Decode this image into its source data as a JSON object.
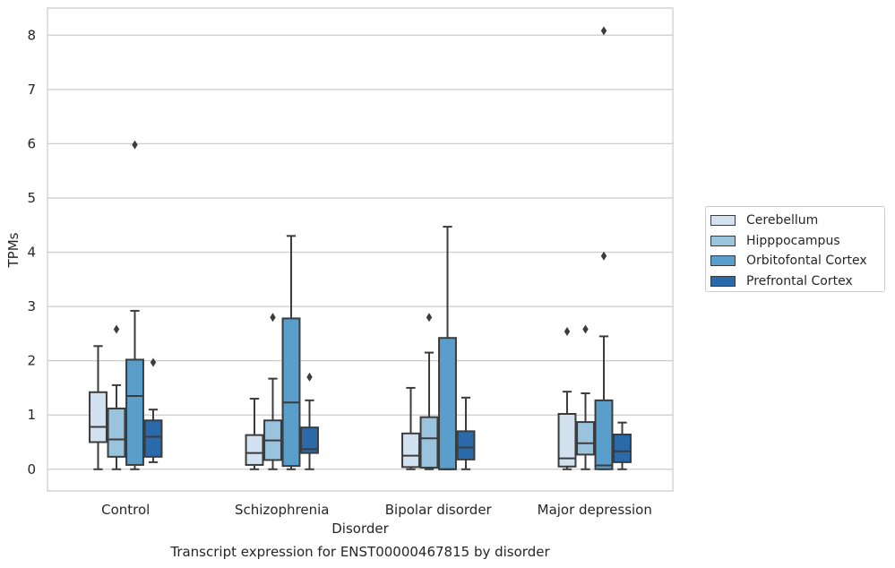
{
  "chart_data": {
    "type": "box",
    "title": "Transcript expression for ENST00000467815 by disorder",
    "xlabel": "Disorder",
    "ylabel": "TPMs",
    "ylim": [
      -0.4,
      8.5
    ],
    "yticks": [
      0,
      1,
      2,
      3,
      4,
      5,
      6,
      7,
      8
    ],
    "grid": "horizontal",
    "legend_position": "right",
    "categories": [
      "Control",
      "Schizophrenia",
      "Bipolar disorder",
      "Major depression"
    ],
    "series": [
      {
        "name": "Cerebellum",
        "color": "#d2e2f1",
        "boxes": [
          {
            "whislo": 0.0,
            "q1": 0.5,
            "med": 0.78,
            "q3": 1.42,
            "whishi": 2.27,
            "fliers": []
          },
          {
            "whislo": 0.0,
            "q1": 0.08,
            "med": 0.3,
            "q3": 0.63,
            "whishi": 1.3,
            "fliers": []
          },
          {
            "whislo": 0.0,
            "q1": 0.04,
            "med": 0.25,
            "q3": 0.66,
            "whishi": 1.5,
            "fliers": []
          },
          {
            "whislo": 0.0,
            "q1": 0.05,
            "med": 0.2,
            "q3": 1.02,
            "whishi": 1.43,
            "fliers": [
              2.54
            ]
          }
        ]
      },
      {
        "name": "Hipppocampus",
        "color": "#9ac3dd",
        "boxes": [
          {
            "whislo": 0.0,
            "q1": 0.23,
            "med": 0.55,
            "q3": 1.12,
            "whishi": 1.55,
            "fliers": [
              2.58
            ]
          },
          {
            "whislo": 0.0,
            "q1": 0.17,
            "med": 0.53,
            "q3": 0.9,
            "whishi": 1.67,
            "fliers": [
              2.8
            ]
          },
          {
            "whislo": 0.0,
            "q1": 0.03,
            "med": 0.57,
            "q3": 0.96,
            "whishi": 2.15,
            "fliers": [
              2.8
            ]
          },
          {
            "whislo": 0.0,
            "q1": 0.27,
            "med": 0.48,
            "q3": 0.87,
            "whishi": 1.4,
            "fliers": [
              2.58
            ]
          }
        ]
      },
      {
        "name": "Orbitofontal Cortex",
        "color": "#5a9ecb",
        "boxes": [
          {
            "whislo": 0.0,
            "q1": 0.08,
            "med": 1.35,
            "q3": 2.02,
            "whishi": 2.92,
            "fliers": [
              5.98
            ]
          },
          {
            "whislo": 0.0,
            "q1": 0.06,
            "med": 1.23,
            "q3": 2.78,
            "whishi": 4.3,
            "fliers": []
          },
          {
            "whislo": 0.0,
            "q1": 0.0,
            "med": 0.0,
            "q3": 2.42,
            "whishi": 4.47,
            "fliers": []
          },
          {
            "whislo": 0.0,
            "q1": 0.0,
            "med": 0.07,
            "q3": 1.27,
            "whishi": 2.45,
            "fliers": [
              3.93,
              8.08
            ]
          }
        ]
      },
      {
        "name": "Prefrontal Cortex",
        "color": "#2a6aab",
        "boxes": [
          {
            "whislo": 0.13,
            "q1": 0.23,
            "med": 0.6,
            "q3": 0.9,
            "whishi": 1.1,
            "fliers": [
              1.97
            ]
          },
          {
            "whislo": 0.0,
            "q1": 0.3,
            "med": 0.37,
            "q3": 0.77,
            "whishi": 1.27,
            "fliers": [
              1.7
            ]
          },
          {
            "whislo": 0.0,
            "q1": 0.18,
            "med": 0.4,
            "q3": 0.7,
            "whishi": 1.32,
            "fliers": []
          },
          {
            "whislo": 0.0,
            "q1": 0.13,
            "med": 0.33,
            "q3": 0.64,
            "whishi": 0.86,
            "fliers": []
          }
        ]
      }
    ]
  }
}
